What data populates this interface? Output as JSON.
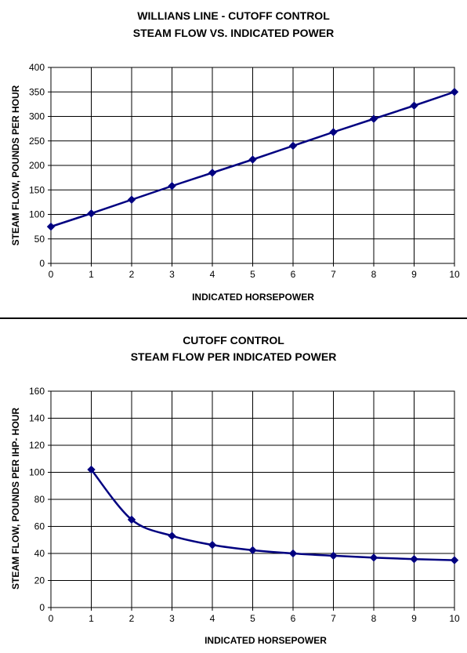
{
  "chart_data": [
    {
      "type": "line",
      "title": "WILLIANS LINE - CUTOFF CONTROL",
      "subtitle": "STEAM FLOW VS. INDICATED POWER",
      "xlabel": "INDICATED HORSEPOWER",
      "ylabel": "STEAM FLOW, POUNDS PER HOUR",
      "xlim": [
        0,
        10
      ],
      "ylim": [
        0,
        400
      ],
      "xticks": [
        0,
        1,
        2,
        3,
        4,
        5,
        6,
        7,
        8,
        9,
        10
      ],
      "yticks": [
        0,
        50,
        100,
        150,
        200,
        250,
        300,
        350,
        400
      ],
      "grid": true,
      "color": "#000080",
      "marker": "diamond",
      "series": [
        {
          "x": [
            0,
            1,
            2,
            3,
            4,
            5,
            6,
            7,
            8,
            9,
            10
          ],
          "values": [
            75,
            102,
            130,
            158,
            185,
            212,
            240,
            268,
            295,
            322,
            350
          ]
        }
      ]
    },
    {
      "type": "line",
      "title": "CUTOFF CONTROL",
      "subtitle": "STEAM FLOW PER INDICATED POWER",
      "xlabel": "INDICATED HORSEPOWER",
      "ylabel": "STEAM FLOW, POUNDS PER IHP- HOUR",
      "xlim": [
        0,
        10
      ],
      "ylim": [
        0,
        160
      ],
      "xticks": [
        0,
        1,
        2,
        3,
        4,
        5,
        6,
        7,
        8,
        9,
        10
      ],
      "yticks": [
        0,
        20,
        40,
        60,
        80,
        100,
        120,
        140,
        160
      ],
      "grid": true,
      "smooth": true,
      "color": "#000080",
      "marker": "diamond",
      "series": [
        {
          "x": [
            1,
            2,
            3,
            4,
            5,
            6,
            7,
            8,
            9,
            10
          ],
          "values": [
            102,
            65,
            53,
            46.3,
            42.4,
            40,
            38.3,
            36.9,
            35.8,
            35
          ]
        }
      ]
    }
  ]
}
